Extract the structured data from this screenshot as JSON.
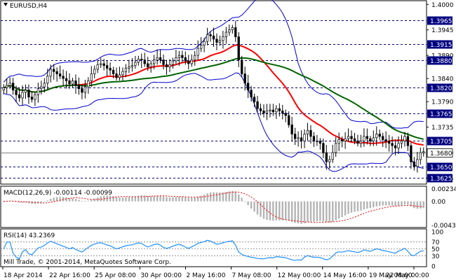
{
  "chart_data": {
    "type": "candlestick",
    "symbol_label": "EURUSD,H4",
    "x_ticks": [
      "18 Apr 2014",
      "22 Apr 16:00",
      "25 Apr 08:00",
      "30 Apr 00:00",
      "2 May 16:00",
      "7 May 08:00",
      "12 May 00:00",
      "14 May 16:00",
      "19 May 08:00",
      "22 May 00:00"
    ],
    "price_axis": {
      "ylim": [
        1.3615,
        1.4005
      ],
      "ticks": [
        "1.4000",
        "1.3945",
        "1.3890",
        "1.3840",
        "1.3790",
        "1.3735",
        "1.3680",
        "1.3625"
      ]
    },
    "levels": [
      {
        "value": 1.3965,
        "label": "1.3965"
      },
      {
        "value": 1.3915,
        "label": "1.3915"
      },
      {
        "value": 1.388,
        "label": "1.3880"
      },
      {
        "value": 1.382,
        "label": "1.3820"
      },
      {
        "value": 1.3765,
        "label": "1.3765"
      },
      {
        "value": 1.3705,
        "label": "1.3705"
      },
      {
        "value": 1.365,
        "label": "1.3650"
      },
      {
        "value": 1.3625,
        "label": "1.3625"
      }
    ],
    "current_price": {
      "value": 1.368,
      "label": "1.3680"
    },
    "close_series": [
      1.382,
      1.3825,
      1.383,
      1.3815,
      1.3805,
      1.3798,
      1.381,
      1.3815,
      1.38,
      1.3795,
      1.3805,
      1.3818,
      1.3822,
      1.383,
      1.3845,
      1.386,
      1.3855,
      1.385,
      1.3845,
      1.384,
      1.3835,
      1.3828,
      1.3835,
      1.3825,
      1.3818,
      1.381,
      1.3822,
      1.3835,
      1.385,
      1.386,
      1.387,
      1.3872,
      1.3868,
      1.3862,
      1.3858,
      1.385,
      1.3842,
      1.3848,
      1.3855,
      1.3862,
      1.3865,
      1.3868,
      1.3875,
      1.3882,
      1.388,
      1.3872,
      1.3865,
      1.3872,
      1.388,
      1.3885,
      1.388,
      1.387,
      1.3865,
      1.387,
      1.3878,
      1.3885,
      1.389,
      1.3885,
      1.3878,
      1.3872,
      1.388,
      1.389,
      1.3905,
      1.3912,
      1.392,
      1.3935,
      1.3932,
      1.3925,
      1.3918,
      1.3922,
      1.393,
      1.394,
      1.3945,
      1.395,
      1.393,
      1.388,
      1.385,
      1.383,
      1.3815,
      1.38,
      1.379,
      1.3775,
      1.377,
      1.3765,
      1.377,
      1.3772,
      1.3768,
      1.3775,
      1.377,
      1.3765,
      1.376,
      1.374,
      1.372,
      1.371,
      1.3712,
      1.3705,
      1.372,
      1.3728,
      1.3715,
      1.3705,
      1.3705,
      1.37,
      1.368,
      1.366,
      1.3665,
      1.368,
      1.37,
      1.3708,
      1.3705,
      1.371,
      1.3715,
      1.371,
      1.3705,
      1.37,
      1.3705,
      1.3715,
      1.371,
      1.3705,
      1.3712,
      1.372,
      1.3715,
      1.3708,
      1.3705,
      1.37,
      1.3695,
      1.369,
      1.37,
      1.3705,
      1.3715,
      1.3695,
      1.366,
      1.365,
      1.3665,
      1.368,
      1.3682
    ],
    "bollinger": {
      "period": 20,
      "deviations": 2
    },
    "moving_averages": [
      {
        "period": 20,
        "color": "#ff0000"
      },
      {
        "period": 50,
        "color": "#006400"
      }
    ],
    "macd": {
      "label": "MACD(12,26,9) -0.00114 -0.00099",
      "ylim": [
        -0.0045,
        0.0025
      ],
      "ticks": [
        "0.00234",
        "0.00",
        "-0.0043"
      ]
    },
    "rsi": {
      "label": "RSI(14) 43.2369",
      "ylim": [
        0,
        100
      ],
      "ticks": [
        "100",
        "70",
        "50",
        "30",
        "0"
      ]
    },
    "watermark": "Mill Trade, © 2001-2014, MetaQuotes Software Corp.",
    "colors": {
      "bull": "#000000",
      "bear": "#000000",
      "bands": "#0000cd",
      "macd_hist": "#b4b4b4",
      "macd_signal": "#ff0000",
      "rsi_line": "#1e90ff",
      "level_line": "#000080",
      "price_tag_bg": "#ffffff"
    }
  }
}
